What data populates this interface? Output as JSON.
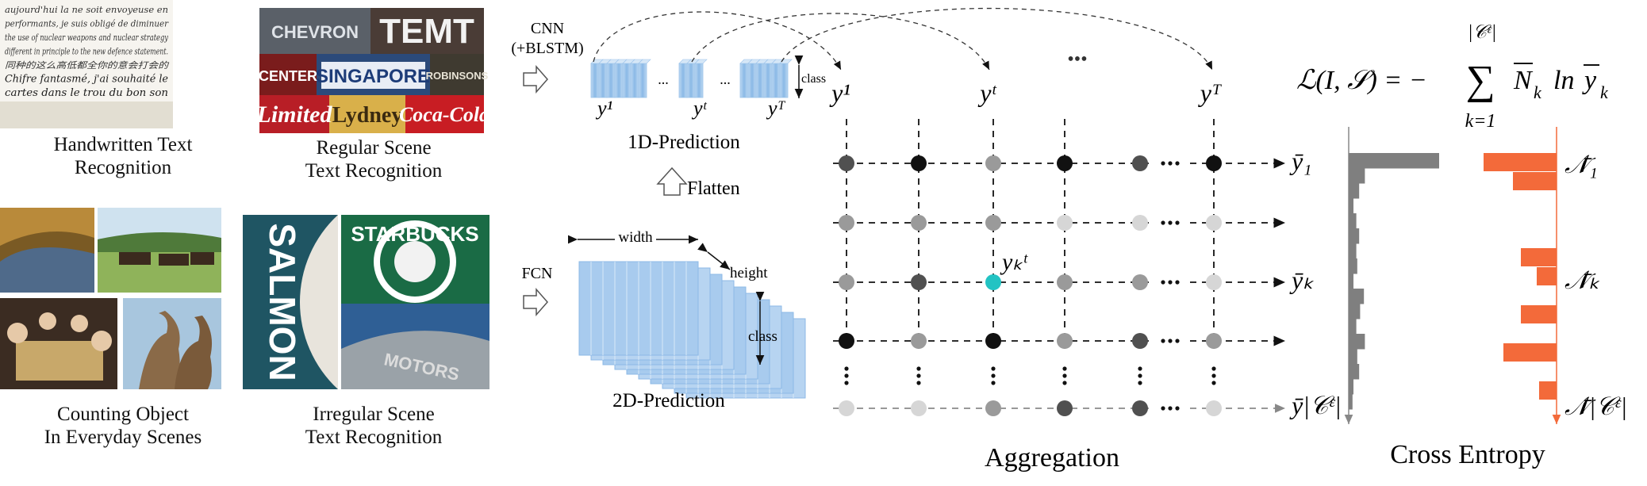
{
  "panels": [
    {
      "key": "handwritten",
      "line1": "Handwritten Text",
      "line2": "Recognition"
    },
    {
      "key": "regular",
      "line1": "Regular Scene",
      "line2": "Text Recognition"
    },
    {
      "key": "counting",
      "line1": "Counting Object",
      "line2": "In Everyday Scenes"
    },
    {
      "key": "irregular",
      "line1": "Irregular Scene",
      "line2": "Text Recognition"
    }
  ],
  "signs": {
    "regular": [
      "CHEVRON",
      "TEMT",
      "CENTER",
      "SINGAPORE",
      "ROBINSONS",
      "Limited",
      "Lydney",
      "Coca-Cola"
    ],
    "irregular": [
      "SALMON",
      "STARBUCKS",
      "MOTORS"
    ]
  },
  "handwriting_lines": [
    "aujourd'hui la ne soit envoyeuse en",
    "performants, je suis obligé de diminuer",
    "the use of nuclear weapons and nuclear strategy",
    "different in principle to the new defence statement.",
    "同种的这么高低都全你的意会打会的",
    "Chifre fantasmé, j'ai souhaité le",
    "cartes dans le trou du bon son"
  ],
  "pipeline": {
    "cnn_label": "CNN",
    "blstm_label": "(+BLSTM)",
    "fcn_label": "FCN",
    "flatten_label": "Flatten",
    "pred1d_label": "1D-Prediction",
    "pred2d_label": "2D-Prediction",
    "class_label": "class",
    "width_label": "width",
    "height_label": "height",
    "dots": "...",
    "y1": "y¹",
    "yt": "yᵗ",
    "yT": "yᵀ"
  },
  "aggregation": {
    "title": "Aggregation",
    "top_labels": [
      "y¹",
      "yᵗ",
      "yᵀ"
    ],
    "top_dots": "•••",
    "row_labels": [
      "ȳ₁",
      "ȳₖ",
      "ȳ|𝒞ᵋ|"
    ],
    "highlight_label": "yₖᵗ",
    "columns": 6,
    "rows": [
      [
        "dark",
        "black",
        "mid",
        "black",
        "dark",
        "black"
      ],
      [
        "mid",
        "mid",
        "mid",
        "light",
        "light",
        "light"
      ],
      [
        "mid",
        "dark",
        "cyan",
        "mid",
        "mid",
        "light"
      ],
      [
        "black",
        "mid",
        "black",
        "mid",
        "dark",
        "mid"
      ],
      [
        "light",
        "light",
        "mid",
        "dark",
        "dark",
        "light"
      ]
    ],
    "dot_colors": {
      "black": "#111111",
      "dark": "#505050",
      "mid": "#9a9a9a",
      "light": "#d6d6d6",
      "cyan": "#22c3c3"
    }
  },
  "loss": {
    "formula_lhs": "ℒ(I, 𝒮) = −",
    "sum_symbol": "∑",
    "sum_upper": "|𝒞ᵋ|",
    "sum_lower": "k=1",
    "term_N": "N",
    "subscript_k": "k",
    "term_ln": "ln",
    "term_y": "y",
    "title": "Cross Entropy",
    "gray_color": "#7f7f7f",
    "orange_color": "#f36a3a",
    "left_labels": [
      "ȳ₁",
      "ȳₖ",
      "ȳ|𝒞ᵋ|"
    ],
    "right_labels": [
      "𝒩̄₁",
      "𝒩̄ₖ",
      "𝒩̄|𝒞ᵋ|"
    ],
    "gray_bars": [
      0.95,
      0.17,
      0.11,
      0.05,
      0.08,
      0.11,
      0.08,
      0.09,
      0.05,
      0.16,
      0.12,
      0.08,
      0.17,
      0.09,
      0.11,
      0.05,
      0.04
    ],
    "orange_bars": [
      0.92,
      0.55,
      0.0,
      0.0,
      0.0,
      0.45,
      0.25,
      0.0,
      0.45,
      0.0,
      0.67,
      0.0,
      0.22,
      0.0
    ]
  }
}
